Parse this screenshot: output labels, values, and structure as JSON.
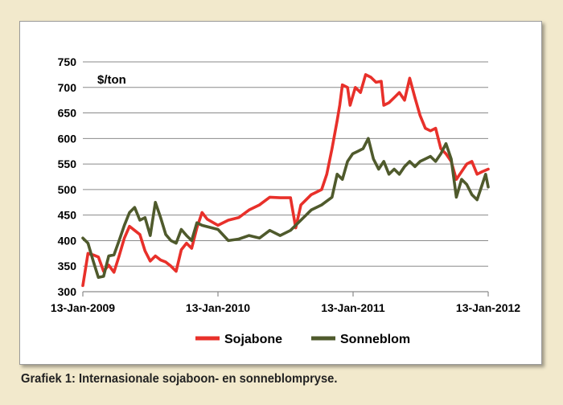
{
  "caption": "Grafiek 1: Internasionale sojaboon- en sonneblompryse.",
  "chart_data": {
    "type": "line",
    "unit_label": "$/ton",
    "x_ticks": [
      "13-Jan-2009",
      "13-Jan-2010",
      "13-Jan-2011",
      "13-Jan-2012"
    ],
    "y_ticks": [
      300,
      350,
      400,
      450,
      500,
      550,
      600,
      650,
      700,
      750
    ],
    "ylim": [
      300,
      750
    ],
    "xlim": [
      "2009-01-13",
      "2012-01-13"
    ],
    "grid": "horizontal",
    "legend_position": "bottom",
    "series": [
      {
        "name": "Sojabone",
        "color": "#e8302a",
        "points": [
          [
            "2009-01-13",
            312
          ],
          [
            "2009-01-27",
            375
          ],
          [
            "2009-02-10",
            372
          ],
          [
            "2009-02-24",
            368
          ],
          [
            "2009-03-10",
            340
          ],
          [
            "2009-03-24",
            352
          ],
          [
            "2009-04-07",
            338
          ],
          [
            "2009-04-21",
            370
          ],
          [
            "2009-05-05",
            405
          ],
          [
            "2009-05-19",
            428
          ],
          [
            "2009-06-02",
            420
          ],
          [
            "2009-06-16",
            412
          ],
          [
            "2009-06-30",
            380
          ],
          [
            "2009-07-14",
            360
          ],
          [
            "2009-07-28",
            370
          ],
          [
            "2009-08-11",
            362
          ],
          [
            "2009-08-25",
            358
          ],
          [
            "2009-09-08",
            350
          ],
          [
            "2009-09-22",
            340
          ],
          [
            "2009-10-06",
            382
          ],
          [
            "2009-10-20",
            395
          ],
          [
            "2009-11-03",
            385
          ],
          [
            "2009-11-17",
            425
          ],
          [
            "2009-12-01",
            455
          ],
          [
            "2009-12-15",
            442
          ],
          [
            "2010-01-13",
            430
          ],
          [
            "2010-02-10",
            440
          ],
          [
            "2010-03-10",
            445
          ],
          [
            "2010-04-07",
            460
          ],
          [
            "2010-05-05",
            470
          ],
          [
            "2010-06-02",
            485
          ],
          [
            "2010-06-30",
            484
          ],
          [
            "2010-07-28",
            484
          ],
          [
            "2010-08-11",
            425
          ],
          [
            "2010-08-25",
            470
          ],
          [
            "2010-09-22",
            490
          ],
          [
            "2010-10-06",
            495
          ],
          [
            "2010-10-20",
            500
          ],
          [
            "2010-11-03",
            530
          ],
          [
            "2010-11-17",
            580
          ],
          [
            "2010-12-01",
            635
          ],
          [
            "2010-12-08",
            665
          ],
          [
            "2010-12-15",
            705
          ],
          [
            "2010-12-29",
            700
          ],
          [
            "2011-01-05",
            665
          ],
          [
            "2011-01-19",
            700
          ],
          [
            "2011-02-02",
            690
          ],
          [
            "2011-02-16",
            725
          ],
          [
            "2011-03-02",
            720
          ],
          [
            "2011-03-16",
            710
          ],
          [
            "2011-03-30",
            712
          ],
          [
            "2011-04-06",
            665
          ],
          [
            "2011-04-20",
            670
          ],
          [
            "2011-05-04",
            680
          ],
          [
            "2011-05-18",
            690
          ],
          [
            "2011-06-01",
            675
          ],
          [
            "2011-06-15",
            718
          ],
          [
            "2011-06-29",
            680
          ],
          [
            "2011-07-13",
            645
          ],
          [
            "2011-07-27",
            620
          ],
          [
            "2011-08-10",
            615
          ],
          [
            "2011-08-24",
            620
          ],
          [
            "2011-09-07",
            580
          ],
          [
            "2011-09-21",
            570
          ],
          [
            "2011-10-05",
            555
          ],
          [
            "2011-10-19",
            520
          ],
          [
            "2011-11-02",
            535
          ],
          [
            "2011-11-16",
            550
          ],
          [
            "2011-11-30",
            555
          ],
          [
            "2011-12-14",
            530
          ],
          [
            "2011-12-28",
            535
          ],
          [
            "2012-01-13",
            540
          ]
        ]
      },
      {
        "name": "Sonneblom",
        "color": "#4f5a2c",
        "points": [
          [
            "2009-01-13",
            405
          ],
          [
            "2009-01-27",
            395
          ],
          [
            "2009-02-10",
            360
          ],
          [
            "2009-02-24",
            328
          ],
          [
            "2009-03-10",
            330
          ],
          [
            "2009-03-24",
            370
          ],
          [
            "2009-04-07",
            372
          ],
          [
            "2009-04-21",
            400
          ],
          [
            "2009-05-05",
            430
          ],
          [
            "2009-05-19",
            455
          ],
          [
            "2009-06-02",
            465
          ],
          [
            "2009-06-16",
            440
          ],
          [
            "2009-06-30",
            445
          ],
          [
            "2009-07-14",
            410
          ],
          [
            "2009-07-28",
            475
          ],
          [
            "2009-08-11",
            445
          ],
          [
            "2009-08-25",
            412
          ],
          [
            "2009-09-08",
            400
          ],
          [
            "2009-09-22",
            395
          ],
          [
            "2009-10-06",
            422
          ],
          [
            "2009-10-20",
            410
          ],
          [
            "2009-11-03",
            400
          ],
          [
            "2009-11-17",
            435
          ],
          [
            "2009-12-01",
            430
          ],
          [
            "2010-01-13",
            422
          ],
          [
            "2010-02-10",
            400
          ],
          [
            "2010-03-10",
            403
          ],
          [
            "2010-04-07",
            410
          ],
          [
            "2010-05-05",
            405
          ],
          [
            "2010-06-02",
            420
          ],
          [
            "2010-06-30",
            410
          ],
          [
            "2010-07-28",
            420
          ],
          [
            "2010-08-25",
            440
          ],
          [
            "2010-09-22",
            460
          ],
          [
            "2010-10-20",
            470
          ],
          [
            "2010-11-17",
            485
          ],
          [
            "2010-12-01",
            530
          ],
          [
            "2010-12-15",
            520
          ],
          [
            "2010-12-29",
            555
          ],
          [
            "2011-01-12",
            570
          ],
          [
            "2011-01-26",
            575
          ],
          [
            "2011-02-09",
            580
          ],
          [
            "2011-02-23",
            600
          ],
          [
            "2011-03-09",
            560
          ],
          [
            "2011-03-23",
            540
          ],
          [
            "2011-04-06",
            555
          ],
          [
            "2011-04-20",
            530
          ],
          [
            "2011-05-04",
            540
          ],
          [
            "2011-05-18",
            530
          ],
          [
            "2011-06-01",
            545
          ],
          [
            "2011-06-15",
            555
          ],
          [
            "2011-06-29",
            545
          ],
          [
            "2011-07-13",
            555
          ],
          [
            "2011-07-27",
            560
          ],
          [
            "2011-08-10",
            565
          ],
          [
            "2011-08-24",
            555
          ],
          [
            "2011-09-07",
            570
          ],
          [
            "2011-09-21",
            590
          ],
          [
            "2011-10-05",
            560
          ],
          [
            "2011-10-19",
            485
          ],
          [
            "2011-11-02",
            520
          ],
          [
            "2011-11-16",
            510
          ],
          [
            "2011-11-30",
            490
          ],
          [
            "2011-12-14",
            480
          ],
          [
            "2011-12-28",
            510
          ],
          [
            "2012-01-06",
            530
          ],
          [
            "2012-01-13",
            505
          ]
        ]
      }
    ]
  }
}
